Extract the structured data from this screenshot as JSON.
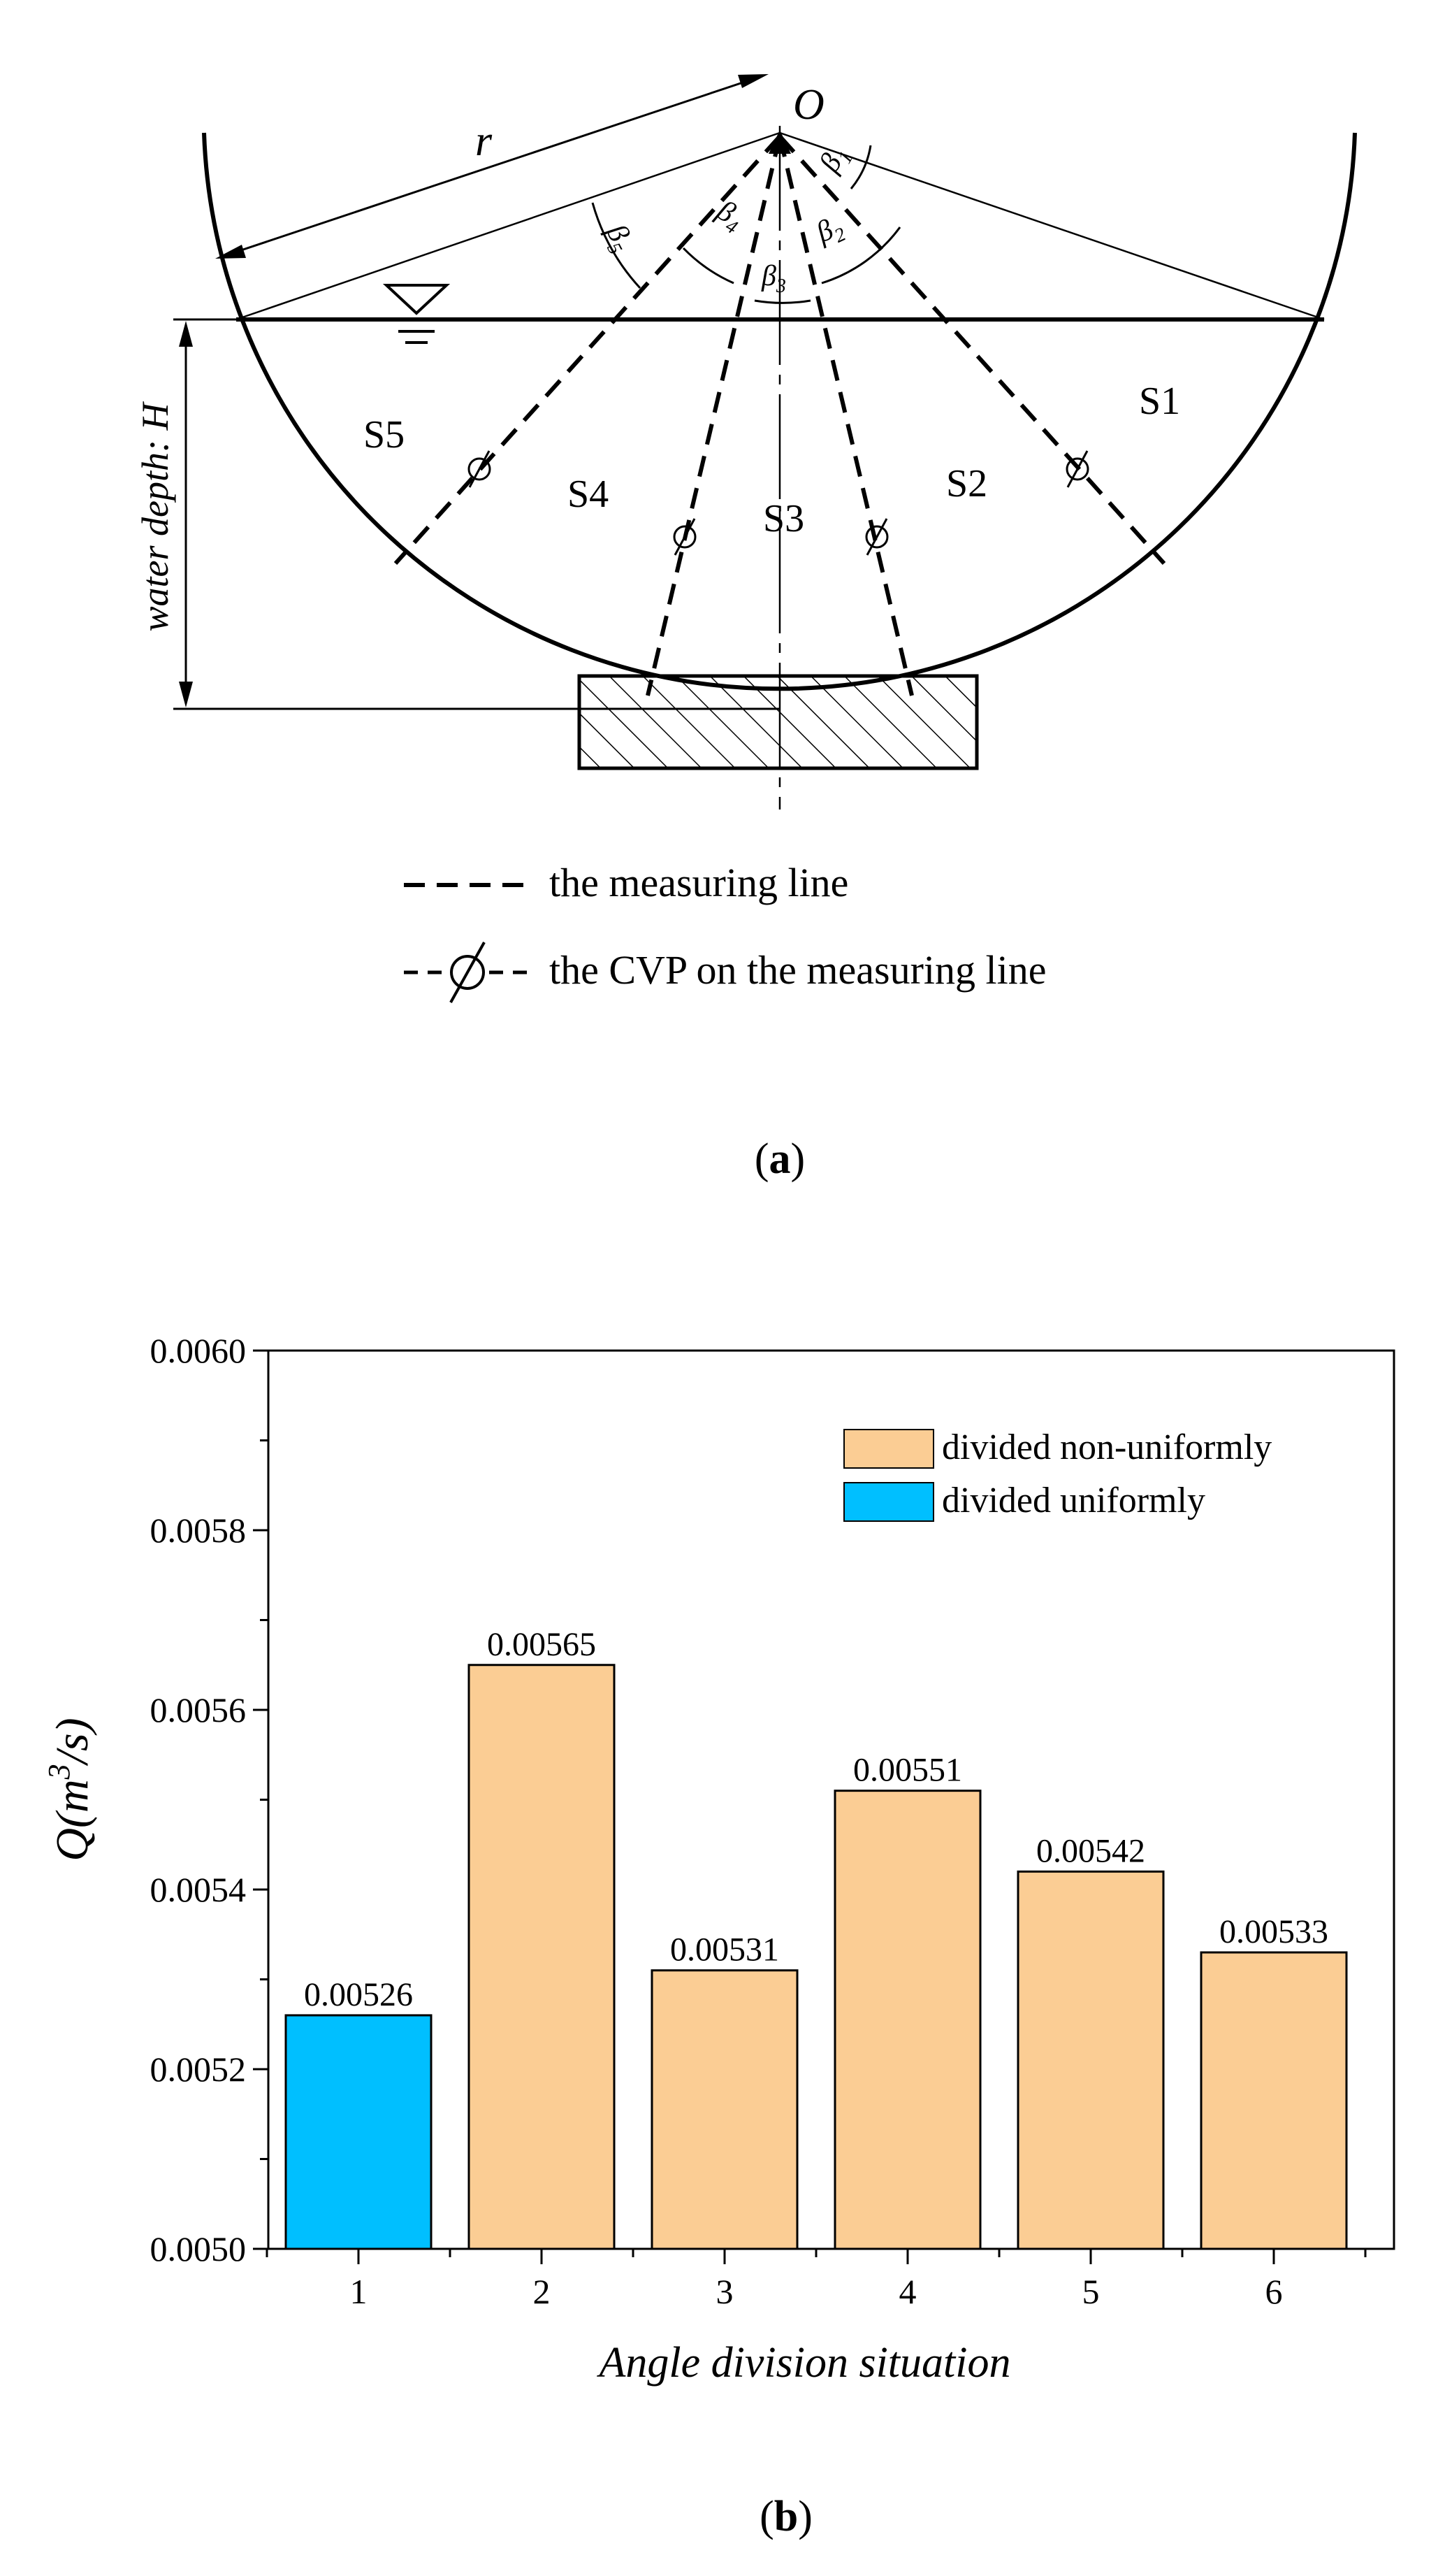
{
  "diagram": {
    "center_label": "O",
    "radius_label": "r",
    "depth_label": "water depth: H",
    "angles": [
      {
        "sym": "β",
        "sub": "1"
      },
      {
        "sym": "β",
        "sub": "2"
      },
      {
        "sym": "β",
        "sub": "3"
      },
      {
        "sym": "β",
        "sub": "4"
      },
      {
        "sym": "β",
        "sub": "5"
      }
    ],
    "sections": [
      "S1",
      "S2",
      "S3",
      "S4",
      "S5"
    ],
    "legend": {
      "measuring_line": "the measuring line",
      "cvp": "the CVP on the measuring line"
    },
    "caption_open": "(",
    "caption_letter": "a",
    "caption_close": ")"
  },
  "chart_data": {
    "type": "bar",
    "title": "",
    "categories": [
      "1",
      "2",
      "3",
      "4",
      "5",
      "6"
    ],
    "values": [
      0.00526,
      0.00565,
      0.00531,
      0.00551,
      0.00542,
      0.00533
    ],
    "value_labels": [
      "0.00526",
      "0.00565",
      "0.00531",
      "0.00551",
      "0.00542",
      "0.00533"
    ],
    "series_of_bar": [
      "uniform",
      "nonuniform",
      "nonuniform",
      "nonuniform",
      "nonuniform",
      "nonuniform"
    ],
    "legend": [
      {
        "key": "nonuniform",
        "label": "divided non-uniformly",
        "color": "#fbcd94"
      },
      {
        "key": "uniform",
        "label": "divided uniformly",
        "color": "#00bfff"
      }
    ],
    "xlabel": "Angle division situation",
    "ylabel": {
      "base": "Q(m",
      "sup": "3",
      "tail": "/s)"
    },
    "ylim": [
      0.005,
      0.006
    ],
    "yticks": [
      "0.0050",
      "0.0052",
      "0.0054",
      "0.0056",
      "0.0058",
      "0.0060"
    ],
    "caption_open": "(",
    "caption_letter": "b",
    "caption_close": ")"
  }
}
